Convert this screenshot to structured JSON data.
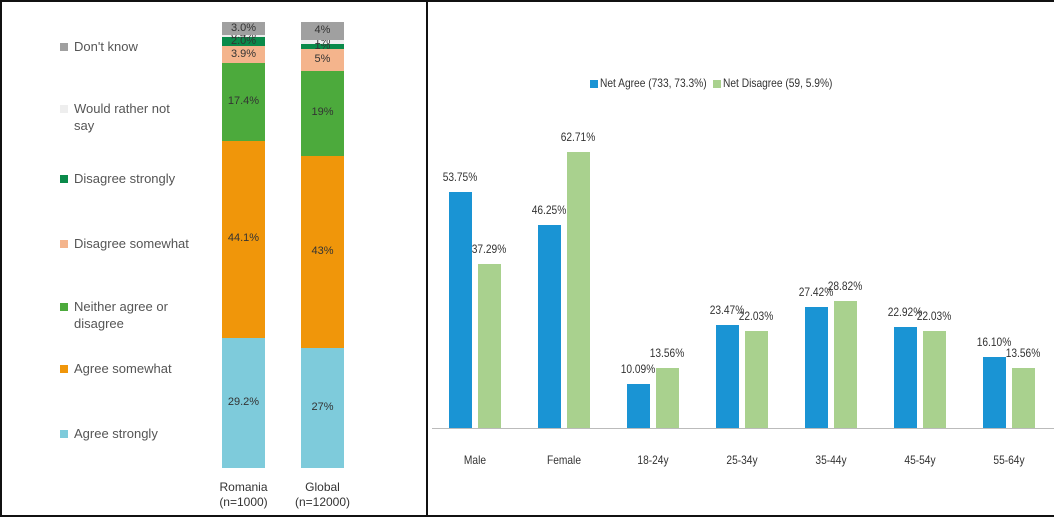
{
  "chart_data": [
    {
      "type": "stacked_bar",
      "categories": [
        "Romania (n=1000)",
        "Global (n=12000)"
      ],
      "series": [
        {
          "name": "Agree strongly",
          "color": "#7ecbdb",
          "values": [
            29.2,
            27
          ],
          "value_labels": [
            "29.2%",
            "27%"
          ]
        },
        {
          "name": "Agree somewhat",
          "color": "#f0960a",
          "values": [
            44.1,
            43
          ],
          "value_labels": [
            "44.1%",
            "43%"
          ]
        },
        {
          "name": "Neither agree or disagree",
          "color": "#4caa3c",
          "values": [
            17.4,
            19
          ],
          "value_labels": [
            "17.4%",
            "19%"
          ]
        },
        {
          "name": "Disagree somewhat",
          "color": "#f4b48c",
          "values": [
            3.9,
            5
          ],
          "value_labels": [
            "3.9%",
            "5%"
          ]
        },
        {
          "name": "Disagree strongly",
          "color": "#0a8a4a",
          "values": [
            2.0,
            1
          ],
          "value_labels": [
            "2.0%",
            "1%"
          ]
        },
        {
          "name": "Would rather not say",
          "color": "#eeeeee",
          "values": [
            0.4,
            1
          ],
          "value_labels": [
            "0.4%",
            "1%"
          ]
        },
        {
          "name": "Don't know",
          "color": "#a0a0a0",
          "values": [
            3.0,
            4
          ],
          "value_labels": [
            "3.0%",
            "4%"
          ]
        }
      ]
    },
    {
      "type": "bar",
      "categories": [
        "Male",
        "Female",
        "18-24y",
        "25-34y",
        "35-44y",
        "45-54y",
        "55-64y"
      ],
      "series": [
        {
          "name": "Net Agree (733, 73.3%)",
          "color": "#1a94d4",
          "values": [
            53.75,
            46.25,
            10.09,
            23.47,
            27.42,
            22.92,
            16.1
          ],
          "value_labels": [
            "53.75%",
            "46.25%",
            "10.09%",
            "23.47%",
            "27.42%",
            "22.92%",
            "16.10%"
          ]
        },
        {
          "name": "Net Disagree (59, 5.9%)",
          "color": "#a9d18e",
          "values": [
            37.29,
            62.71,
            13.56,
            22.03,
            28.82,
            22.03,
            13.56
          ],
          "value_labels": [
            "37.29%",
            "62.71%",
            "13.56%",
            "22.03%",
            "28.82%",
            "22.03%",
            "13.56%"
          ]
        }
      ]
    }
  ]
}
